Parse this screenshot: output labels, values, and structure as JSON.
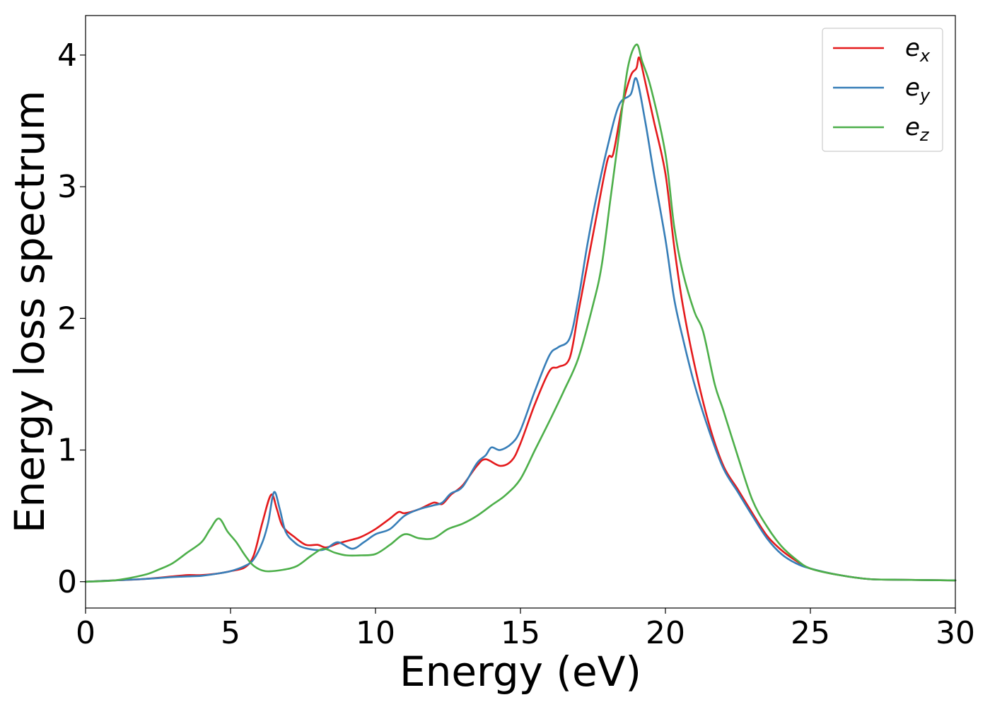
{
  "chart_data": {
    "type": "line",
    "xlabel": "Energy (eV)",
    "ylabel": "Energy loss spectrum",
    "xlim": [
      0,
      30
    ],
    "ylim": [
      -0.2,
      4.3
    ],
    "xticks": [
      "0",
      "5",
      "10",
      "15",
      "20",
      "25",
      "30"
    ],
    "yticks": [
      "0",
      "1",
      "2",
      "3",
      "4"
    ],
    "grid": false,
    "legend_position": "top-right",
    "series": [
      {
        "name": "e_x",
        "label_base": "e",
        "label_sub": "x",
        "color": "#e41a1c",
        "points": [
          [
            0,
            0
          ],
          [
            1,
            0.01
          ],
          [
            2,
            0.02
          ],
          [
            3,
            0.04
          ],
          [
            3.5,
            0.05
          ],
          [
            4,
            0.05
          ],
          [
            4.5,
            0.06
          ],
          [
            5,
            0.08
          ],
          [
            5.5,
            0.11
          ],
          [
            5.8,
            0.2
          ],
          [
            6.1,
            0.45
          ],
          [
            6.4,
            0.66
          ],
          [
            6.6,
            0.55
          ],
          [
            6.8,
            0.42
          ],
          [
            7.2,
            0.34
          ],
          [
            7.6,
            0.28
          ],
          [
            8,
            0.28
          ],
          [
            8.3,
            0.26
          ],
          [
            8.7,
            0.29
          ],
          [
            9.2,
            0.32
          ],
          [
            9.5,
            0.34
          ],
          [
            10,
            0.4
          ],
          [
            10.5,
            0.48
          ],
          [
            10.8,
            0.53
          ],
          [
            11,
            0.52
          ],
          [
            11.5,
            0.55
          ],
          [
            12,
            0.6
          ],
          [
            12.3,
            0.59
          ],
          [
            12.6,
            0.66
          ],
          [
            13,
            0.73
          ],
          [
            13.5,
            0.88
          ],
          [
            13.8,
            0.93
          ],
          [
            14.3,
            0.88
          ],
          [
            14.7,
            0.92
          ],
          [
            15,
            1.05
          ],
          [
            15.5,
            1.35
          ],
          [
            16,
            1.6
          ],
          [
            16.3,
            1.63
          ],
          [
            16.7,
            1.7
          ],
          [
            17,
            2.05
          ],
          [
            17.3,
            2.4
          ],
          [
            17.6,
            2.75
          ],
          [
            18,
            3.2
          ],
          [
            18.2,
            3.25
          ],
          [
            18.5,
            3.6
          ],
          [
            18.8,
            3.84
          ],
          [
            19,
            3.9
          ],
          [
            19.1,
            3.98
          ],
          [
            19.3,
            3.8
          ],
          [
            19.6,
            3.5
          ],
          [
            20,
            3.1
          ],
          [
            20.3,
            2.55
          ],
          [
            20.6,
            2.1
          ],
          [
            21,
            1.65
          ],
          [
            21.5,
            1.2
          ],
          [
            22,
            0.88
          ],
          [
            22.5,
            0.7
          ],
          [
            23,
            0.52
          ],
          [
            23.5,
            0.35
          ],
          [
            24,
            0.24
          ],
          [
            24.5,
            0.16
          ],
          [
            25,
            0.1
          ],
          [
            26,
            0.05
          ],
          [
            27,
            0.02
          ],
          [
            28,
            0.015
          ],
          [
            30,
            0.01
          ]
        ]
      },
      {
        "name": "e_y",
        "label_base": "e",
        "label_sub": "y",
        "color": "#377eb8",
        "points": [
          [
            0,
            0
          ],
          [
            1,
            0.01
          ],
          [
            2,
            0.02
          ],
          [
            3,
            0.035
          ],
          [
            3.5,
            0.04
          ],
          [
            4,
            0.045
          ],
          [
            4.5,
            0.06
          ],
          [
            5,
            0.08
          ],
          [
            5.5,
            0.12
          ],
          [
            5.8,
            0.17
          ],
          [
            6.1,
            0.3
          ],
          [
            6.3,
            0.45
          ],
          [
            6.5,
            0.68
          ],
          [
            6.7,
            0.55
          ],
          [
            6.9,
            0.38
          ],
          [
            7.2,
            0.3
          ],
          [
            7.5,
            0.26
          ],
          [
            8,
            0.24
          ],
          [
            8.3,
            0.25
          ],
          [
            8.7,
            0.3
          ],
          [
            9.2,
            0.25
          ],
          [
            9.6,
            0.3
          ],
          [
            10,
            0.36
          ],
          [
            10.5,
            0.4
          ],
          [
            11,
            0.5
          ],
          [
            11.5,
            0.55
          ],
          [
            12,
            0.58
          ],
          [
            12.3,
            0.6
          ],
          [
            12.6,
            0.67
          ],
          [
            13,
            0.72
          ],
          [
            13.5,
            0.9
          ],
          [
            13.8,
            0.96
          ],
          [
            14,
            1.02
          ],
          [
            14.3,
            1.0
          ],
          [
            14.7,
            1.05
          ],
          [
            15,
            1.15
          ],
          [
            15.5,
            1.45
          ],
          [
            16,
            1.72
          ],
          [
            16.3,
            1.78
          ],
          [
            16.7,
            1.85
          ],
          [
            17,
            2.15
          ],
          [
            17.3,
            2.55
          ],
          [
            17.6,
            2.9
          ],
          [
            18,
            3.3
          ],
          [
            18.4,
            3.62
          ],
          [
            18.8,
            3.7
          ],
          [
            19,
            3.82
          ],
          [
            19.3,
            3.5
          ],
          [
            19.6,
            3.1
          ],
          [
            20,
            2.6
          ],
          [
            20.3,
            2.15
          ],
          [
            20.6,
            1.85
          ],
          [
            21,
            1.5
          ],
          [
            21.5,
            1.15
          ],
          [
            22,
            0.86
          ],
          [
            22.5,
            0.68
          ],
          [
            23,
            0.5
          ],
          [
            23.5,
            0.33
          ],
          [
            24,
            0.21
          ],
          [
            24.5,
            0.14
          ],
          [
            25,
            0.1
          ],
          [
            26,
            0.05
          ],
          [
            27,
            0.02
          ],
          [
            28,
            0.015
          ],
          [
            30,
            0.01
          ]
        ]
      },
      {
        "name": "e_z",
        "label_base": "e",
        "label_sub": "z",
        "color": "#4daf4a",
        "points": [
          [
            0,
            0
          ],
          [
            1,
            0.01
          ],
          [
            2,
            0.05
          ],
          [
            2.5,
            0.09
          ],
          [
            3,
            0.14
          ],
          [
            3.5,
            0.22
          ],
          [
            4,
            0.3
          ],
          [
            4.3,
            0.4
          ],
          [
            4.6,
            0.48
          ],
          [
            4.9,
            0.38
          ],
          [
            5.2,
            0.3
          ],
          [
            5.5,
            0.2
          ],
          [
            5.8,
            0.12
          ],
          [
            6.2,
            0.08
          ],
          [
            6.8,
            0.09
          ],
          [
            7.3,
            0.12
          ],
          [
            7.8,
            0.2
          ],
          [
            8.2,
            0.25
          ],
          [
            8.6,
            0.22
          ],
          [
            9,
            0.2
          ],
          [
            9.5,
            0.2
          ],
          [
            10,
            0.21
          ],
          [
            10.5,
            0.28
          ],
          [
            11,
            0.36
          ],
          [
            11.5,
            0.33
          ],
          [
            12,
            0.33
          ],
          [
            12.5,
            0.4
          ],
          [
            13,
            0.44
          ],
          [
            13.5,
            0.5
          ],
          [
            14,
            0.58
          ],
          [
            14.5,
            0.66
          ],
          [
            15,
            0.78
          ],
          [
            15.5,
            1.0
          ],
          [
            16,
            1.22
          ],
          [
            16.5,
            1.45
          ],
          [
            17,
            1.7
          ],
          [
            17.5,
            2.1
          ],
          [
            17.8,
            2.4
          ],
          [
            18.1,
            2.9
          ],
          [
            18.4,
            3.4
          ],
          [
            18.7,
            3.9
          ],
          [
            19,
            4.08
          ],
          [
            19.2,
            3.95
          ],
          [
            19.5,
            3.75
          ],
          [
            20,
            3.25
          ],
          [
            20.3,
            2.7
          ],
          [
            20.6,
            2.35
          ],
          [
            21,
            2.05
          ],
          [
            21.3,
            1.9
          ],
          [
            21.7,
            1.5
          ],
          [
            22,
            1.3
          ],
          [
            22.5,
            0.95
          ],
          [
            23,
            0.62
          ],
          [
            23.5,
            0.42
          ],
          [
            24,
            0.27
          ],
          [
            24.5,
            0.17
          ],
          [
            25,
            0.1
          ],
          [
            26,
            0.05
          ],
          [
            27,
            0.02
          ],
          [
            28,
            0.015
          ],
          [
            30,
            0.01
          ]
        ]
      }
    ]
  }
}
